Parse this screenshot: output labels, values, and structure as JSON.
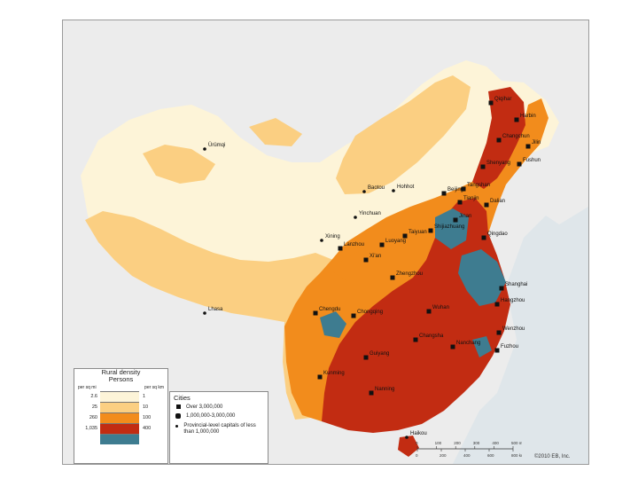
{
  "map": {
    "colors": {
      "sea": "#dfe6ea",
      "neighbors": "#ececec",
      "d1": "#fdf4d8",
      "d2": "#fbcf82",
      "d3": "#f28c1c",
      "d4": "#c22c12",
      "d5": "#3e7c90"
    },
    "cities": [
      {
        "name": "Qiqihar",
        "kind": "major-city"
      },
      {
        "name": "Harbin",
        "kind": "major-city"
      },
      {
        "name": "Changchun",
        "kind": "major-city"
      },
      {
        "name": "Jilin",
        "kind": "major-city"
      },
      {
        "name": "Fushun",
        "kind": "major-city"
      },
      {
        "name": "Shenyang",
        "kind": "major-city"
      },
      {
        "name": "Hohhot",
        "kind": "provincial-capital"
      },
      {
        "name": "Baotou",
        "kind": "provincial-capital"
      },
      {
        "name": "Beijing",
        "kind": "major-city"
      },
      {
        "name": "Tangshan",
        "kind": "major-city"
      },
      {
        "name": "Tianjin",
        "kind": "major-city"
      },
      {
        "name": "Dalian",
        "kind": "major-city"
      },
      {
        "name": "Ürümqi",
        "kind": "provincial-capital"
      },
      {
        "name": "Yinchuan",
        "kind": "provincial-capital"
      },
      {
        "name": "Xining",
        "kind": "provincial-capital"
      },
      {
        "name": "Lanzhou",
        "kind": "major-city"
      },
      {
        "name": "Taiyuan",
        "kind": "major-city"
      },
      {
        "name": "Shijiazhuang",
        "kind": "major-city"
      },
      {
        "name": "Jinan",
        "kind": "major-city"
      },
      {
        "name": "Qingdao",
        "kind": "major-city"
      },
      {
        "name": "Luoyang",
        "kind": "major-city"
      },
      {
        "name": "Xi'an",
        "kind": "major-city"
      },
      {
        "name": "Zhengzhou",
        "kind": "major-city"
      },
      {
        "name": "Shanghai",
        "kind": "major-city"
      },
      {
        "name": "Hangzhou",
        "kind": "major-city"
      },
      {
        "name": "Lhasa",
        "kind": "provincial-capital"
      },
      {
        "name": "Chengdu",
        "kind": "major-city"
      },
      {
        "name": "Chongqing",
        "kind": "major-city"
      },
      {
        "name": "Wuhan",
        "kind": "major-city"
      },
      {
        "name": "Changsha",
        "kind": "major-city"
      },
      {
        "name": "Nanchang",
        "kind": "major-city"
      },
      {
        "name": "Wenzhou",
        "kind": "major-city"
      },
      {
        "name": "Fuzhou",
        "kind": "major-city"
      },
      {
        "name": "Guiyang",
        "kind": "major-city"
      },
      {
        "name": "Kunming",
        "kind": "major-city"
      },
      {
        "name": "Nanning",
        "kind": "major-city"
      },
      {
        "name": "Haikou",
        "kind": "provincial-capital"
      }
    ]
  },
  "density_legend": {
    "title_line1": "Rural density",
    "title_line2": "Persons",
    "left_head": "per sq mi",
    "right_head": "per sq km",
    "rows": [
      {
        "left": "2.6",
        "right": "1",
        "color": "#fdf4d8"
      },
      {
        "left": "25",
        "right": "10",
        "color": "#fbcf82"
      },
      {
        "left": "260",
        "right": "100",
        "color": "#f28c1c"
      },
      {
        "left": "1,035",
        "right": "400",
        "color": "#c22c12"
      },
      {
        "left": "",
        "right": "",
        "color": "#3e7c90"
      }
    ]
  },
  "cities_legend": {
    "title": "Cities",
    "items": [
      {
        "label": "Over 3,000,000",
        "symbol": "square"
      },
      {
        "label": "1,000,000-3,000,000",
        "symbol": "hexagon"
      },
      {
        "label": "Provincial-level capitals of less than 1,000,000",
        "symbol": "dot"
      }
    ]
  },
  "scale": {
    "miles": [
      "0",
      "100",
      "200",
      "300",
      "400",
      "500 mi"
    ],
    "km": [
      "0",
      "200",
      "400",
      "600",
      "800 km"
    ]
  },
  "copyright": "©2010 EB, Inc."
}
